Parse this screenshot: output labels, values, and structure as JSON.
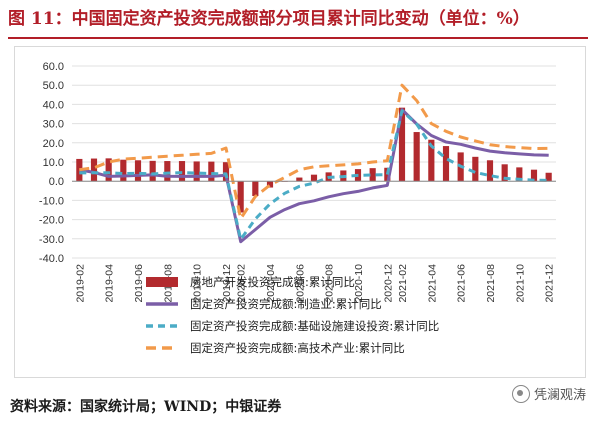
{
  "title": "图 11：中国固定资产投资完成额部分项目累计同比变动（单位：%）",
  "source": "资料来源：国家统计局；WIND；中银证券",
  "watermark": "凭澜观涛",
  "colors": {
    "title": "#B21E28",
    "bar": "#B22A2E",
    "manufacturing": "#7B5EA7",
    "infrastructure": "#4BACC6",
    "hightech": "#F29A4A"
  },
  "chart_data": {
    "type": "bar",
    "x": [
      "2019-02",
      "2019-03",
      "2019-04",
      "2019-05",
      "2019-06",
      "2019-07",
      "2019-08",
      "2019-09",
      "2019-10",
      "2019-11",
      "2019-12",
      "2020-02",
      "2020-03",
      "2020-04",
      "2020-05",
      "2020-06",
      "2020-07",
      "2020-08",
      "2020-09",
      "2020-10",
      "2020-11",
      "2020-12",
      "2021-02",
      "2021-03",
      "2021-04",
      "2021-05",
      "2021-06",
      "2021-07",
      "2021-08",
      "2021-09",
      "2021-10",
      "2021-11",
      "2021-12"
    ],
    "x_tick_labels": [
      "2019-02",
      "2019-04",
      "2019-06",
      "2019-08",
      "2019-10",
      "2019-12",
      "2020-02",
      "2020-04",
      "2020-06",
      "2020-08",
      "2020-10",
      "2020-12",
      "2021-02",
      "2021-04",
      "2021-06",
      "2021-08",
      "2021-10",
      "2021-12"
    ],
    "ylim": [
      -40,
      60
    ],
    "yticks": [
      "60.0",
      "50.0",
      "40.0",
      "30.0",
      "20.0",
      "10.0",
      "0.0",
      "-10.0",
      "-20.0",
      "-30.0",
      "-40.0"
    ],
    "series": [
      {
        "name": "房地产开发投资完成额:累计同比",
        "type": "bar",
        "style": "bar",
        "values": [
          11.6,
          11.8,
          11.9,
          11.2,
          10.9,
          10.6,
          10.5,
          10.5,
          10.3,
          10.2,
          9.9,
          -16.3,
          -7.7,
          -3.3,
          -0.3,
          1.9,
          3.4,
          4.6,
          5.6,
          6.3,
          6.8,
          7.0,
          38.3,
          25.6,
          21.6,
          18.3,
          15.0,
          12.7,
          10.9,
          8.8,
          7.2,
          6.0,
          4.4
        ]
      },
      {
        "name": "固定资产投资完成额:制造业:累计同比",
        "type": "line",
        "style": "solid",
        "values": [
          5.9,
          4.6,
          2.5,
          2.7,
          3.0,
          3.3,
          2.6,
          2.5,
          2.6,
          2.5,
          3.1,
          -31.5,
          -25.2,
          -18.8,
          -14.8,
          -11.7,
          -10.2,
          -8.1,
          -6.5,
          -5.3,
          -3.5,
          -2.2,
          37.3,
          29.8,
          23.8,
          20.4,
          19.2,
          17.3,
          15.7,
          14.8,
          14.2,
          13.7,
          13.5
        ]
      },
      {
        "name": "固定资产投资完成额:基础设施建设投资:累计同比",
        "type": "line",
        "style": "dashed",
        "values": [
          4.3,
          4.4,
          4.4,
          4.0,
          4.1,
          3.8,
          4.2,
          4.5,
          4.2,
          4.0,
          3.8,
          -30.3,
          -19.7,
          -11.8,
          -6.3,
          -2.7,
          -1.0,
          2.0,
          2.4,
          3.0,
          3.3,
          3.4,
          36.6,
          29.7,
          18.4,
          11.8,
          7.8,
          4.6,
          2.9,
          1.5,
          1.0,
          0.5,
          0.4
        ]
      },
      {
        "name": "固定资产投资完成额:高技术产业:累计同比",
        "type": "line",
        "style": "dashed",
        "values": [
          6.0,
          7.0,
          10.0,
          11.5,
          12.0,
          12.5,
          13.0,
          13.5,
          14.0,
          14.5,
          17.3,
          -19.5,
          -8.0,
          -2.0,
          2.0,
          6.0,
          7.5,
          8.0,
          8.5,
          9.0,
          10.0,
          10.6,
          50.0,
          42.0,
          30.0,
          26.0,
          23.0,
          21.0,
          19.0,
          18.0,
          17.5,
          17.0,
          17.1
        ]
      }
    ]
  }
}
